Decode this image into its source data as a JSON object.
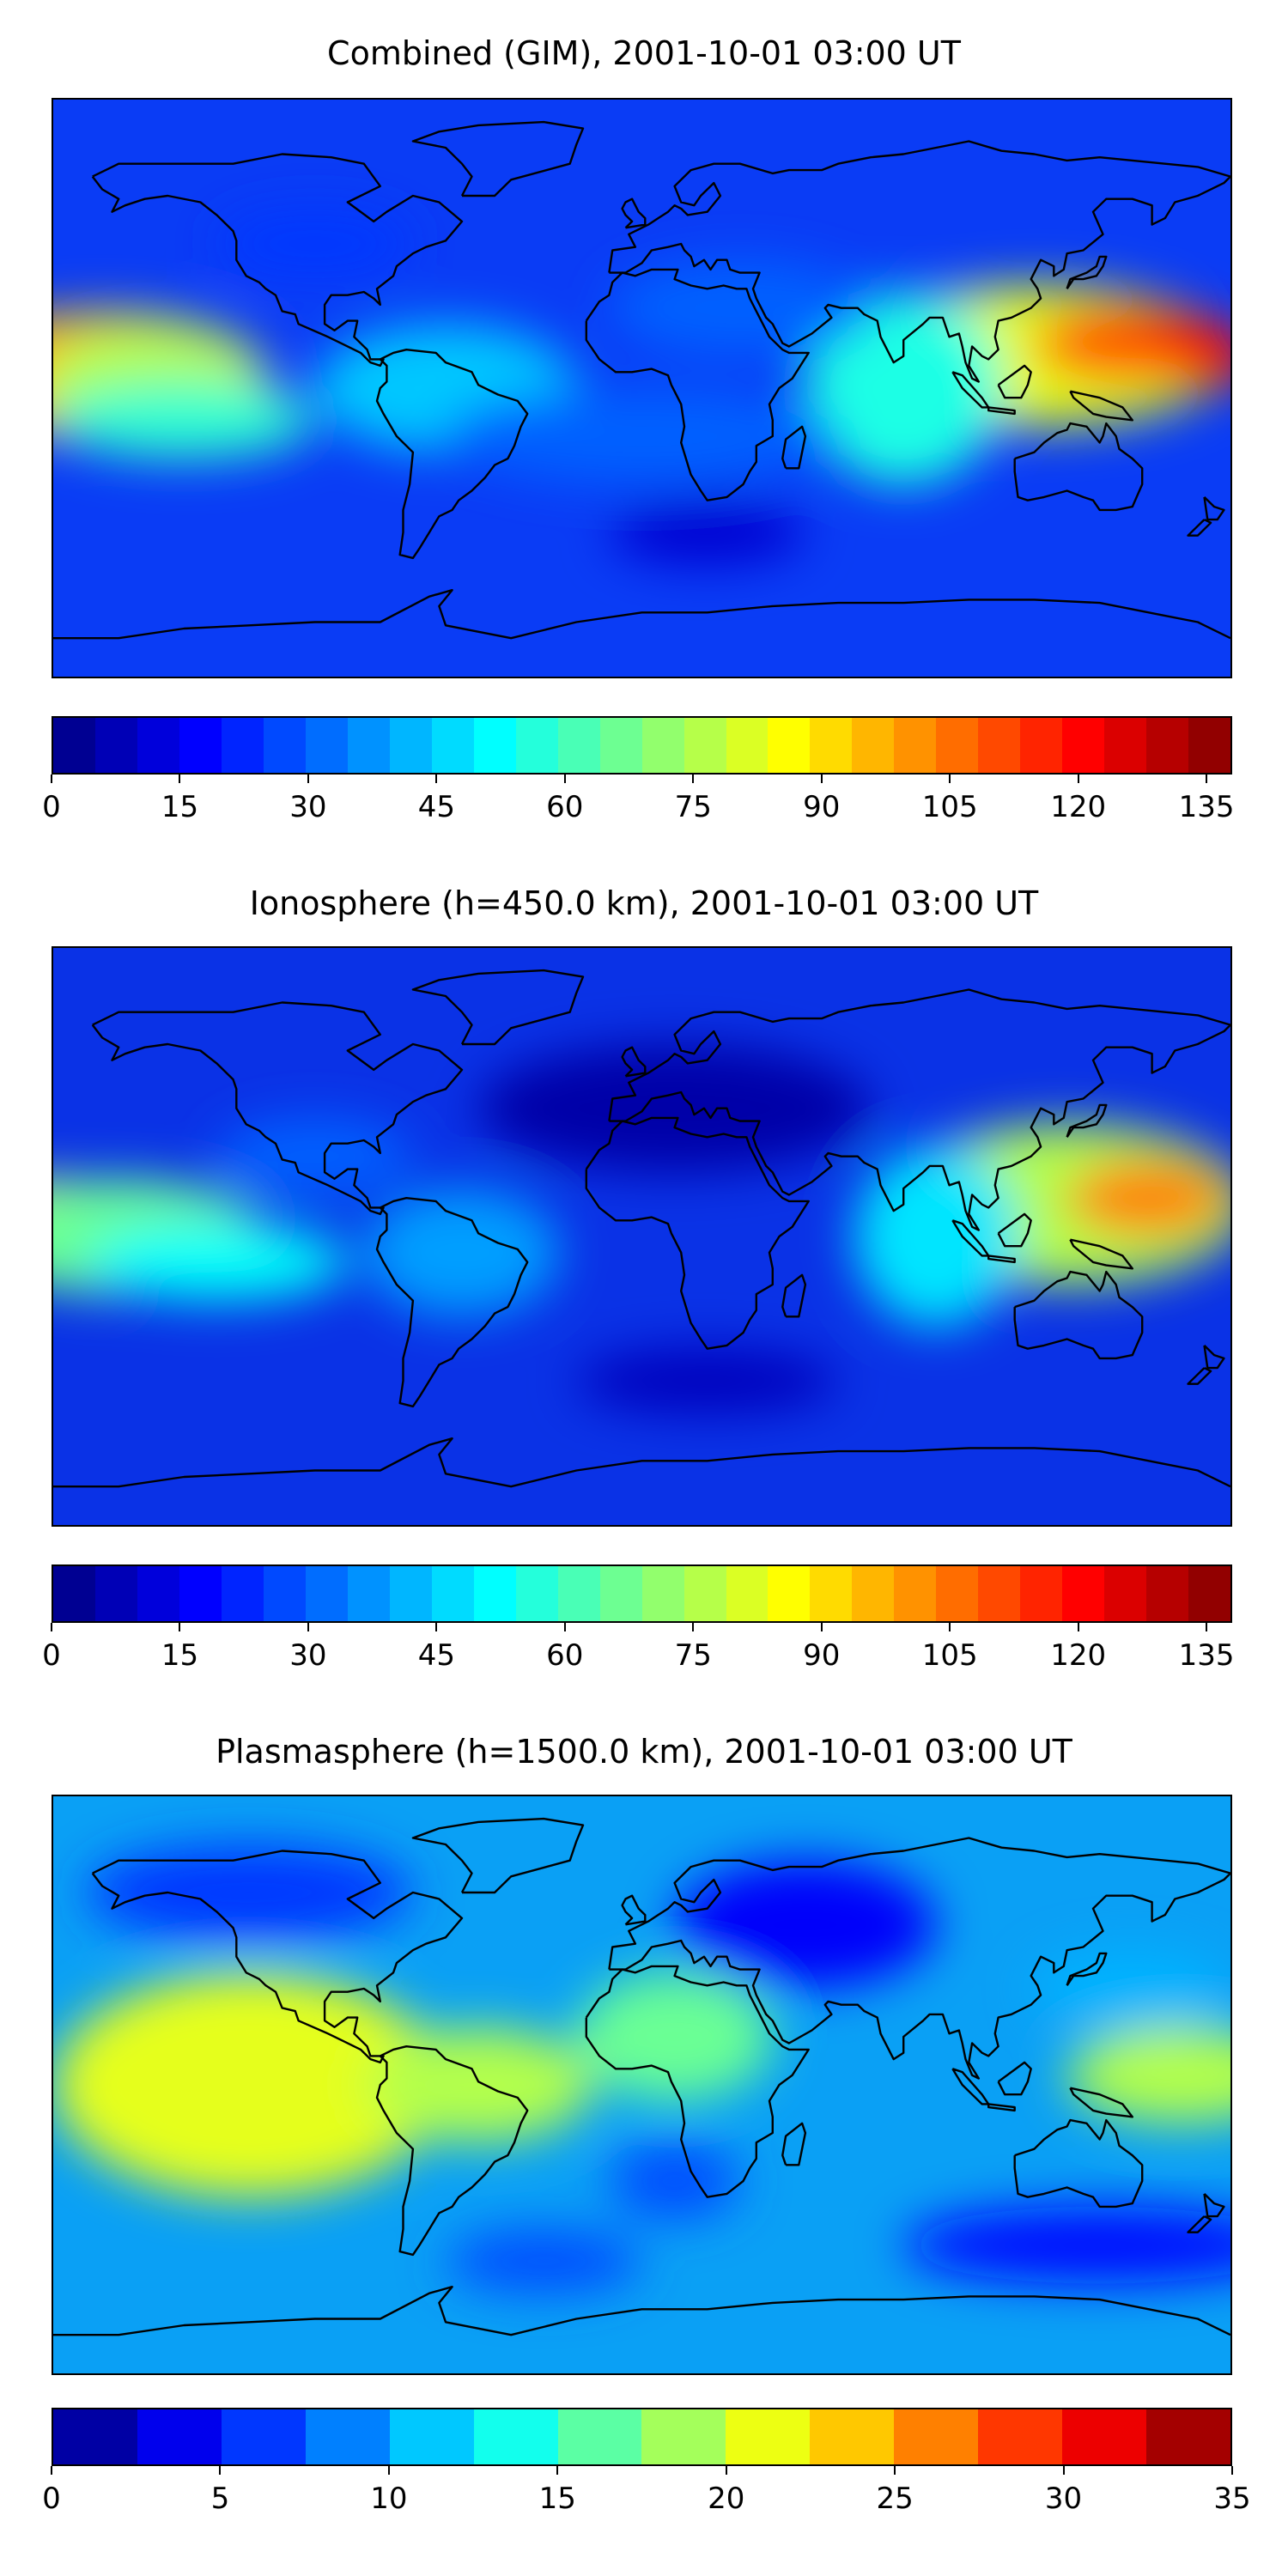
{
  "panels": [
    {
      "title": "Combined (GIM), 2001-10-01 03:00 UT",
      "colorbar": {
        "min": 0,
        "max": 138,
        "levels": 28,
        "ticks": [
          "0",
          "15",
          "30",
          "45",
          "60",
          "75",
          "90",
          "105",
          "120",
          "135"
        ],
        "tick_values": [
          0,
          15,
          30,
          45,
          60,
          75,
          90,
          105,
          120,
          135
        ]
      },
      "field": {
        "background": "#0a3cf5",
        "blobs": [
          {
            "lon": -180,
            "lat": 8,
            "level": 0.82,
            "rx": 55,
            "ry": 15
          },
          {
            "lon": -165,
            "lat": 4,
            "level": 0.7,
            "rx": 50,
            "ry": 20
          },
          {
            "lon": -150,
            "lat": 0,
            "level": 0.55,
            "rx": 35,
            "ry": 20
          },
          {
            "lon": -140,
            "lat": -10,
            "level": 0.42,
            "rx": 40,
            "ry": 12
          },
          {
            "lon": 120,
            "lat": 10,
            "level": 0.6,
            "rx": 60,
            "ry": 22
          },
          {
            "lon": 150,
            "lat": 14,
            "level": 0.8,
            "rx": 30,
            "ry": 12
          },
          {
            "lon": 172,
            "lat": 10,
            "level": 0.88,
            "rx": 15,
            "ry": 10
          },
          {
            "lon": 80,
            "lat": 0,
            "level": 0.4,
            "rx": 30,
            "ry": 30
          },
          {
            "lon": -60,
            "lat": 0,
            "level": 0.32,
            "rx": 40,
            "ry": 20
          },
          {
            "lon": 0,
            "lat": -15,
            "level": 0.22,
            "rx": 60,
            "ry": 15
          },
          {
            "lon": -100,
            "lat": 45,
            "level": 0.18,
            "rx": 30,
            "ry": 10
          },
          {
            "lon": 30,
            "lat": 25,
            "level": 0.22,
            "rx": 40,
            "ry": 15
          },
          {
            "lon": 20,
            "lat": -45,
            "level": 0.08,
            "rx": 30,
            "ry": 10
          }
        ]
      }
    },
    {
      "title": "Ionosphere  (h=450.0 km), 2001-10-01 03:00 UT",
      "colorbar": {
        "min": 0,
        "max": 138,
        "levels": 28,
        "ticks": [
          "0",
          "15",
          "30",
          "45",
          "60",
          "75",
          "90",
          "105",
          "120",
          "135"
        ],
        "tick_values": [
          0,
          15,
          30,
          45,
          60,
          75,
          90,
          105,
          120,
          135
        ]
      },
      "field": {
        "background": "#0a32e6",
        "blobs": [
          {
            "lon": -180,
            "lat": 8,
            "level": 0.65,
            "rx": 30,
            "ry": 10
          },
          {
            "lon": -175,
            "lat": -5,
            "level": 0.62,
            "rx": 30,
            "ry": 10
          },
          {
            "lon": -160,
            "lat": 0,
            "level": 0.48,
            "rx": 45,
            "ry": 18
          },
          {
            "lon": -130,
            "lat": -8,
            "level": 0.38,
            "rx": 40,
            "ry": 12
          },
          {
            "lon": 130,
            "lat": 10,
            "level": 0.55,
            "rx": 55,
            "ry": 25
          },
          {
            "lon": 155,
            "lat": 12,
            "level": 0.75,
            "rx": 25,
            "ry": 12
          },
          {
            "lon": 90,
            "lat": 0,
            "level": 0.35,
            "rx": 25,
            "ry": 28
          },
          {
            "lon": -55,
            "lat": -5,
            "level": 0.28,
            "rx": 30,
            "ry": 20
          },
          {
            "lon": -100,
            "lat": 25,
            "level": 0.22,
            "rx": 30,
            "ry": 12
          },
          {
            "lon": 10,
            "lat": 40,
            "level": 0.04,
            "rx": 60,
            "ry": 20
          },
          {
            "lon": 20,
            "lat": -45,
            "level": 0.06,
            "rx": 40,
            "ry": 10
          }
        ]
      }
    },
    {
      "title": "Plasmasphere (h=1500.0 km), 2001-10-01 03:00 UT",
      "colorbar": {
        "min": 0,
        "max": 35,
        "levels": 14,
        "ticks": [
          "0",
          "5",
          "10",
          "15",
          "20",
          "25",
          "30",
          "35"
        ],
        "tick_values": [
          0,
          5,
          10,
          15,
          20,
          25,
          30,
          35
        ]
      },
      "field": {
        "background": "#0aa0f5",
        "blobs": [
          {
            "lon": -110,
            "lat": 0,
            "level": 0.95,
            "rx": 20,
            "ry": 18
          },
          {
            "lon": -110,
            "lat": 0,
            "level": 0.75,
            "rx": 35,
            "ry": 28
          },
          {
            "lon": -120,
            "lat": 0,
            "level": 0.6,
            "rx": 60,
            "ry": 35
          },
          {
            "lon": -50,
            "lat": 0,
            "level": 0.55,
            "rx": 35,
            "ry": 18
          },
          {
            "lon": 10,
            "lat": 15,
            "level": 0.48,
            "rx": 30,
            "ry": 20
          },
          {
            "lon": 175,
            "lat": 5,
            "level": 0.78,
            "rx": 15,
            "ry": 10
          },
          {
            "lon": 165,
            "lat": 3,
            "level": 0.55,
            "rx": 35,
            "ry": 15
          },
          {
            "lon": 50,
            "lat": 50,
            "level": 0.12,
            "rx": 40,
            "ry": 20
          },
          {
            "lon": -120,
            "lat": 60,
            "level": 0.18,
            "rx": 50,
            "ry": 15
          },
          {
            "lon": 10,
            "lat": -30,
            "level": 0.2,
            "rx": 20,
            "ry": 12
          },
          {
            "lon": -30,
            "lat": -55,
            "level": 0.2,
            "rx": 30,
            "ry": 10
          },
          {
            "lon": 140,
            "lat": -50,
            "level": 0.14,
            "rx": 60,
            "ry": 12
          },
          {
            "lon": 150,
            "lat": 30,
            "level": 0.3,
            "rx": 30,
            "ry": 12
          }
        ]
      }
    }
  ],
  "jet_colors": [
    "#00007f",
    "#0000bf",
    "#0000ff",
    "#0040ff",
    "#0080ff",
    "#00bfff",
    "#00ffff",
    "#40ffbf",
    "#80ff80",
    "#bfff40",
    "#ffff00",
    "#ffbf00",
    "#ff8000",
    "#ff4000",
    "#ff0000",
    "#bf0000",
    "#7f0000"
  ],
  "coast_color": "#000000"
}
